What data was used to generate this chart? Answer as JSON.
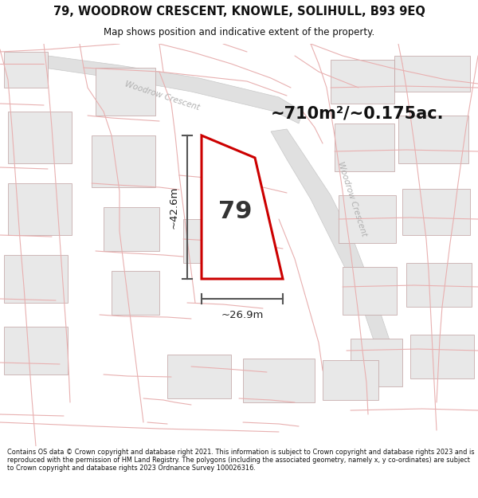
{
  "title_line1": "79, WOODROW CRESCENT, KNOWLE, SOLIHULL, B93 9EQ",
  "title_line2": "Map shows position and indicative extent of the property.",
  "area_label": "~710m²/~0.175ac.",
  "dim_height": "~42.6m",
  "dim_width": "~26.9m",
  "plot_number": "79",
  "footer": "Contains OS data © Crown copyright and database right 2021. This information is subject to Crown copyright and database rights 2023 and is reproduced with the permission of HM Land Registry. The polygons (including the associated geometry, namely x, y co-ordinates) are subject to Crown copyright and database rights 2023 Ordnance Survey 100026316.",
  "map_bg": "#fafafa",
  "plot_fill": "white",
  "plot_edge": "#cc0000",
  "building_color": "#e8e8e8",
  "building_edge": "#c0a0a0",
  "road_line_color": "#e8b0b0",
  "road_fill": "#e8e8e8",
  "road_edge": "#c8c8c8",
  "dim_line_color": "#555555",
  "road_label_color": "#b0b0b0",
  "title_bg": "#ffffff",
  "footer_bg": "#ffffff"
}
